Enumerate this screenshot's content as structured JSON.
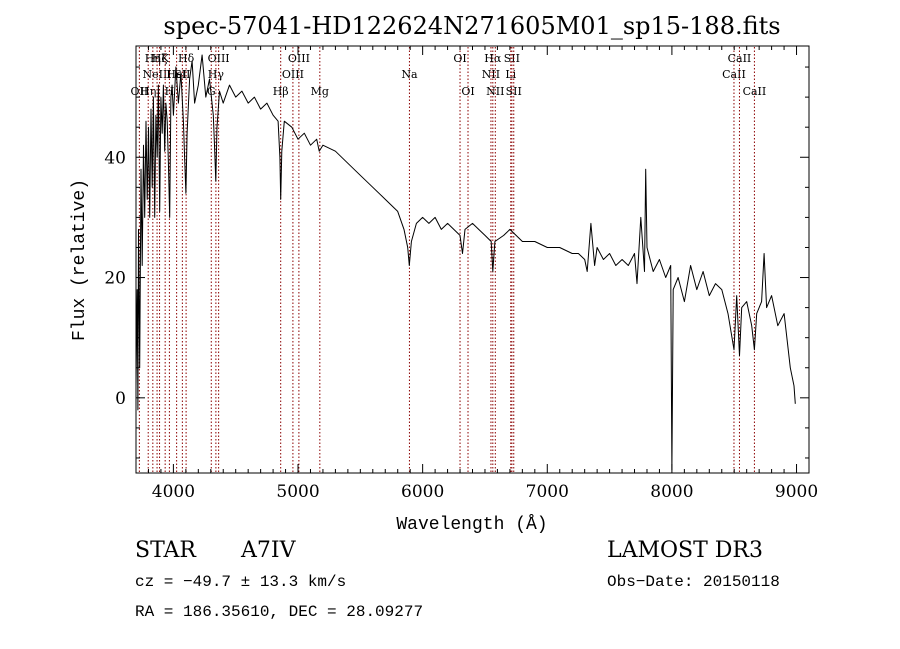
{
  "chart_data": {
    "type": "line",
    "title": "spec-57041-HD122624N271605M01_sp15-188.fits",
    "xlabel": "Wavelength (Å)",
    "ylabel": "Flux (relative)",
    "xlim": [
      3700,
      9100
    ],
    "ylim": [
      -12.5,
      58.5
    ],
    "xticks": [
      4000,
      5000,
      6000,
      7000,
      8000,
      9000
    ],
    "yticks": [
      0,
      20,
      40
    ],
    "line_color": "#000000",
    "marker_color": "#8b0000",
    "series": [
      {
        "name": "flux",
        "points": [
          [
            3700,
            2
          ],
          [
            3710,
            18
          ],
          [
            3715,
            -2
          ],
          [
            3720,
            28
          ],
          [
            3730,
            5
          ],
          [
            3740,
            38
          ],
          [
            3750,
            22
          ],
          [
            3760,
            42
          ],
          [
            3770,
            30
          ],
          [
            3780,
            46
          ],
          [
            3790,
            33
          ],
          [
            3800,
            45
          ],
          [
            3810,
            30
          ],
          [
            3820,
            48
          ],
          [
            3830,
            35
          ],
          [
            3840,
            50
          ],
          [
            3850,
            30
          ],
          [
            3860,
            47
          ],
          [
            3870,
            40
          ],
          [
            3880,
            52
          ],
          [
            3890,
            31
          ],
          [
            3900,
            50
          ],
          [
            3910,
            44
          ],
          [
            3920,
            52
          ],
          [
            3930,
            41
          ],
          [
            3940,
            49
          ],
          [
            3950,
            46
          ],
          [
            3960,
            39
          ],
          [
            3970,
            30
          ],
          [
            3980,
            50
          ],
          [
            3990,
            52
          ],
          [
            4000,
            47
          ],
          [
            4020,
            55
          ],
          [
            4040,
            49
          ],
          [
            4060,
            54
          ],
          [
            4080,
            46
          ],
          [
            4090,
            40
          ],
          [
            4100,
            34
          ],
          [
            4110,
            44
          ],
          [
            4130,
            53
          ],
          [
            4150,
            56
          ],
          [
            4170,
            49
          ],
          [
            4200,
            52
          ],
          [
            4230,
            57
          ],
          [
            4260,
            50
          ],
          [
            4290,
            53
          ],
          [
            4320,
            47
          ],
          [
            4330,
            42
          ],
          [
            4340,
            36
          ],
          [
            4350,
            45
          ],
          [
            4370,
            51
          ],
          [
            4400,
            49
          ],
          [
            4450,
            52
          ],
          [
            4500,
            50
          ],
          [
            4550,
            51
          ],
          [
            4600,
            49
          ],
          [
            4650,
            50
          ],
          [
            4700,
            48
          ],
          [
            4750,
            49
          ],
          [
            4800,
            47
          ],
          [
            4840,
            46
          ],
          [
            4855,
            40
          ],
          [
            4861,
            33
          ],
          [
            4870,
            41
          ],
          [
            4890,
            46
          ],
          [
            4950,
            45
          ],
          [
            5000,
            43
          ],
          [
            5050,
            44
          ],
          [
            5100,
            42
          ],
          [
            5150,
            43
          ],
          [
            5170,
            41
          ],
          [
            5200,
            42
          ],
          [
            5300,
            41
          ],
          [
            5400,
            39
          ],
          [
            5500,
            37
          ],
          [
            5600,
            35
          ],
          [
            5700,
            33
          ],
          [
            5800,
            31
          ],
          [
            5850,
            28
          ],
          [
            5880,
            25
          ],
          [
            5893,
            22
          ],
          [
            5910,
            26
          ],
          [
            5950,
            29
          ],
          [
            6000,
            30
          ],
          [
            6050,
            29
          ],
          [
            6100,
            30
          ],
          [
            6150,
            28
          ],
          [
            6200,
            29
          ],
          [
            6250,
            28
          ],
          [
            6300,
            27
          ],
          [
            6320,
            24
          ],
          [
            6340,
            28
          ],
          [
            6400,
            29
          ],
          [
            6450,
            28
          ],
          [
            6500,
            27
          ],
          [
            6550,
            26
          ],
          [
            6563,
            21
          ],
          [
            6580,
            26
          ],
          [
            6650,
            27
          ],
          [
            6700,
            28
          ],
          [
            6750,
            27
          ],
          [
            6800,
            26
          ],
          [
            6900,
            26
          ],
          [
            7000,
            25
          ],
          [
            7100,
            25
          ],
          [
            7200,
            24
          ],
          [
            7250,
            24
          ],
          [
            7300,
            23
          ],
          [
            7320,
            21
          ],
          [
            7350,
            29
          ],
          [
            7380,
            22
          ],
          [
            7400,
            25
          ],
          [
            7450,
            23
          ],
          [
            7500,
            24
          ],
          [
            7550,
            22
          ],
          [
            7600,
            23
          ],
          [
            7650,
            22
          ],
          [
            7700,
            24
          ],
          [
            7720,
            19
          ],
          [
            7750,
            30
          ],
          [
            7780,
            21
          ],
          [
            7790,
            38
          ],
          [
            7800,
            25
          ],
          [
            7850,
            21
          ],
          [
            7900,
            23
          ],
          [
            7950,
            20
          ],
          [
            7990,
            22
          ],
          [
            8000,
            -12
          ],
          [
            8010,
            18
          ],
          [
            8050,
            20
          ],
          [
            8100,
            16
          ],
          [
            8150,
            22
          ],
          [
            8200,
            18
          ],
          [
            8250,
            21
          ],
          [
            8300,
            17
          ],
          [
            8350,
            19
          ],
          [
            8400,
            18
          ],
          [
            8450,
            14
          ],
          [
            8498,
            8
          ],
          [
            8520,
            17
          ],
          [
            8542,
            7
          ],
          [
            8560,
            15
          ],
          [
            8600,
            16
          ],
          [
            8640,
            12
          ],
          [
            8662,
            8
          ],
          [
            8680,
            14
          ],
          [
            8720,
            16
          ],
          [
            8740,
            24
          ],
          [
            8760,
            15
          ],
          [
            8800,
            17
          ],
          [
            8850,
            12
          ],
          [
            8900,
            14
          ],
          [
            8950,
            5
          ],
          [
            8980,
            2
          ],
          [
            8990,
            -1
          ]
        ]
      }
    ],
    "lines": [
      {
        "wave": 3727,
        "label": "OII",
        "row": 3
      },
      {
        "wave": 3798,
        "label": "Hη",
        "row": 3
      },
      {
        "wave": 3835,
        "label": "Hη",
        "row": 1
      },
      {
        "wave": 3869,
        "label": "NeIII",
        "row": 2
      },
      {
        "wave": 3889,
        "label": "Hζ",
        "row": 1
      },
      {
        "wave": 3934,
        "label": "K",
        "row": 1
      },
      {
        "wave": 3968,
        "label": "H",
        "row": 3
      },
      {
        "wave": 4026,
        "label": "HeI",
        "row": 2
      },
      {
        "wave": 4072,
        "label": "SII",
        "row": 2
      },
      {
        "wave": 4102,
        "label": "Hδ",
        "row": 1
      },
      {
        "wave": 4304,
        "label": "G",
        "row": 3
      },
      {
        "wave": 4341,
        "label": "Hγ",
        "row": 2
      },
      {
        "wave": 4363,
        "label": "OIII",
        "row": 1
      },
      {
        "wave": 4861,
        "label": "Hβ",
        "row": 3
      },
      {
        "wave": 4959,
        "label": "OIII",
        "row": 2
      },
      {
        "wave": 5007,
        "label": "OIII",
        "row": 1
      },
      {
        "wave": 5175,
        "label": "Mg",
        "row": 3
      },
      {
        "wave": 5894,
        "label": "Na",
        "row": 2
      },
      {
        "wave": 6300,
        "label": "OI",
        "row": 1
      },
      {
        "wave": 6364,
        "label": "OI",
        "row": 3
      },
      {
        "wave": 6548,
        "label": "NII",
        "row": 2
      },
      {
        "wave": 6563,
        "label": "Hα",
        "row": 1
      },
      {
        "wave": 6583,
        "label": "NII",
        "row": 3
      },
      {
        "wave": 6707,
        "label": "Li",
        "row": 2
      },
      {
        "wave": 6716,
        "label": "SII",
        "row": 1
      },
      {
        "wave": 6731,
        "label": "SII",
        "row": 3
      },
      {
        "wave": 8498,
        "label": "CaII",
        "row": 2
      },
      {
        "wave": 8542,
        "label": "CaII",
        "row": 1
      },
      {
        "wave": 8662,
        "label": "CaII",
        "row": 3
      }
    ]
  },
  "info": {
    "object_type": "STAR",
    "subclass": "A7IV",
    "survey": "LAMOST DR3",
    "cz": "cz = −49.7 ± 13.3 km/s",
    "obs_date": "Obs−Date: 20150118",
    "coords": "RA = 186.35610, DEC =  28.09277"
  }
}
